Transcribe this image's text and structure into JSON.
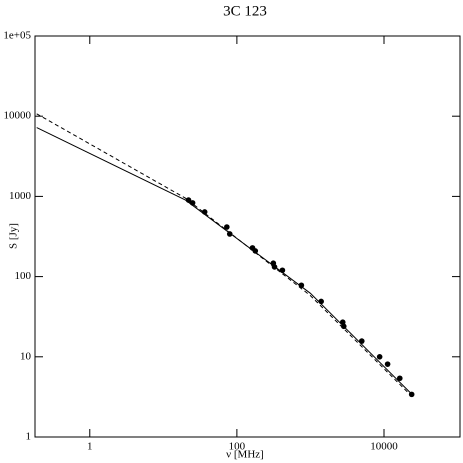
{
  "chart_data": {
    "type": "scatter",
    "title": "3C 123",
    "x_label": "ν [MHz]",
    "y_label": "S [Jy]",
    "log_x": true,
    "log_y": true,
    "xlim": [
      0.18,
      108000
    ],
    "ylim": [
      1,
      100000
    ],
    "xticks": [
      1,
      100,
      10000
    ],
    "yticks": [
      1,
      10,
      100,
      1000,
      10000,
      {
        "value": 100000,
        "label": "1e+05"
      }
    ],
    "points": {
      "color": "#000000",
      "x": [
        22,
        25,
        36.5,
        73,
        80,
        163,
        178,
        313,
        325,
        416,
        753,
        1400,
        2750,
        2840,
        4990,
        8730,
        11200,
        16400,
        23800
      ],
      "y": [
        900,
        830,
        640,
        415,
        340,
        228,
        209,
        147,
        132,
        120,
        78,
        49,
        27,
        24,
        15.7,
        10,
        8.1,
        5.4,
        3.4
      ]
    },
    "series": [
      {
        "style": "solid",
        "color": "#000000",
        "x": [
          0.19,
          20,
          1000,
          24000
        ],
        "values": [
          7200,
          900,
          62,
          3.4
        ]
      },
      {
        "style": "dashed",
        "color": "#000000",
        "x": [
          0.19,
          20,
          1000,
          24000
        ],
        "values": [
          10700,
          950,
          58,
          3.2
        ]
      }
    ]
  }
}
